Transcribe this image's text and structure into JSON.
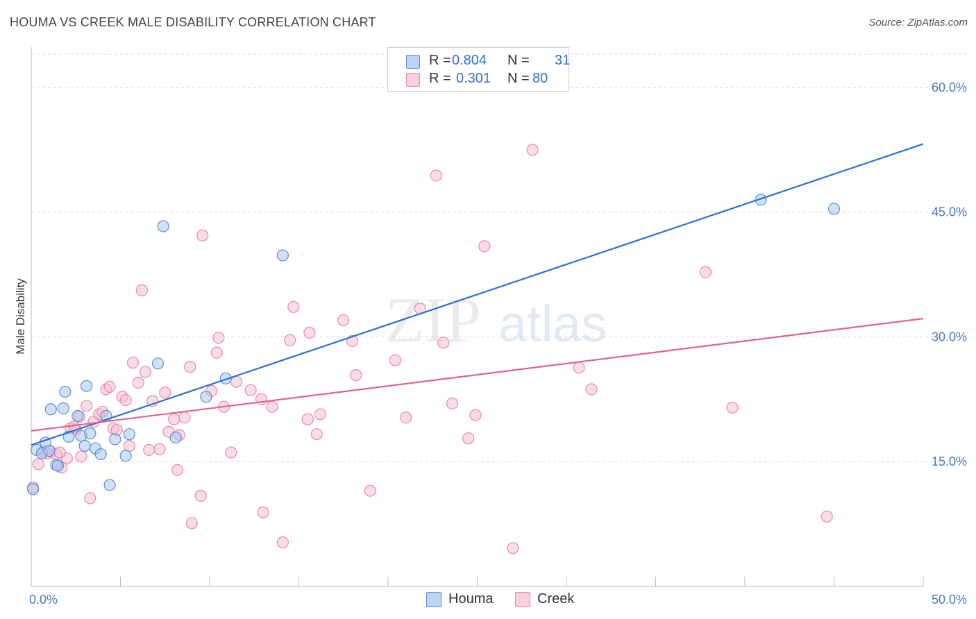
{
  "header": {
    "title": "HOUMA VS CREEK MALE DISABILITY CORRELATION CHART",
    "source": "Source: ZipAtlas.com"
  },
  "watermark": {
    "zip": "ZIP",
    "atlas": "atlas"
  },
  "legend": {
    "houma": {
      "r_label": "R =",
      "r_value": "0.804",
      "n_label": "N =",
      "n_value": "31"
    },
    "creek": {
      "r_label": "R =",
      "r_value": "0.301",
      "n_label": "N =",
      "n_value": "80"
    }
  },
  "bottom_legend": {
    "houma": "Houma",
    "creek": "Creek"
  },
  "colors": {
    "houma_fill": "#a9c6f0",
    "houma_stroke": "#5b8fd9",
    "houma_line": "#2a6fd4",
    "creek_fill": "#f5bfd0",
    "creek_stroke": "#e88aa8",
    "creek_line": "#e0638f",
    "tick_text": "#4a78c4",
    "grid": "#d8d8d8"
  },
  "chart_data": {
    "type": "scatter",
    "title": "HOUMA VS CREEK MALE DISABILITY CORRELATION CHART",
    "xlabel": "",
    "ylabel": "Male Disability",
    "xlim": [
      0,
      50
    ],
    "ylim": [
      0,
      60
    ],
    "x_tick_labels": [
      "0.0%",
      "50.0%"
    ],
    "y_ticks": [
      15,
      30,
      45,
      60
    ],
    "y_tick_labels": [
      "15.0%",
      "30.0%",
      "45.0%",
      "60.0%"
    ],
    "grid": true,
    "legend_position": "top-center",
    "series": [
      {
        "name": "Houma",
        "r": 0.804,
        "n": 31,
        "trend": {
          "x": [
            0,
            50
          ],
          "y": [
            17.0,
            53.2
          ]
        },
        "points": [
          {
            "x": 0.1,
            "y": 11.7
          },
          {
            "x": 0.3,
            "y": 16.4
          },
          {
            "x": 0.6,
            "y": 16.0
          },
          {
            "x": 0.8,
            "y": 17.3
          },
          {
            "x": 1.0,
            "y": 16.3
          },
          {
            "x": 1.1,
            "y": 21.3
          },
          {
            "x": 1.4,
            "y": 14.6
          },
          {
            "x": 1.5,
            "y": 14.5
          },
          {
            "x": 1.8,
            "y": 21.4
          },
          {
            "x": 1.9,
            "y": 23.4
          },
          {
            "x": 2.1,
            "y": 18.0
          },
          {
            "x": 2.6,
            "y": 20.5
          },
          {
            "x": 2.8,
            "y": 18.1
          },
          {
            "x": 3.0,
            "y": 16.9
          },
          {
            "x": 3.1,
            "y": 24.1
          },
          {
            "x": 3.3,
            "y": 18.4
          },
          {
            "x": 3.6,
            "y": 16.6
          },
          {
            "x": 3.9,
            "y": 15.9
          },
          {
            "x": 4.2,
            "y": 20.5
          },
          {
            "x": 4.4,
            "y": 12.2
          },
          {
            "x": 4.7,
            "y": 17.7
          },
          {
            "x": 5.3,
            "y": 15.7
          },
          {
            "x": 5.5,
            "y": 18.3
          },
          {
            "x": 7.1,
            "y": 26.8
          },
          {
            "x": 7.4,
            "y": 43.3
          },
          {
            "x": 8.1,
            "y": 17.9
          },
          {
            "x": 9.8,
            "y": 22.8
          },
          {
            "x": 10.9,
            "y": 25.0
          },
          {
            "x": 14.1,
            "y": 39.8
          },
          {
            "x": 40.9,
            "y": 46.5
          },
          {
            "x": 45.0,
            "y": 45.4
          }
        ]
      },
      {
        "name": "Creek",
        "r": 0.301,
        "n": 80,
        "trend": {
          "x": [
            0,
            50
          ],
          "y": [
            18.7,
            32.2
          ]
        },
        "points": [
          {
            "x": 0.1,
            "y": 11.9
          },
          {
            "x": 0.4,
            "y": 14.7
          },
          {
            "x": 0.7,
            "y": 16.2
          },
          {
            "x": 0.9,
            "y": 16.0
          },
          {
            "x": 1.1,
            "y": 16.2
          },
          {
            "x": 1.4,
            "y": 15.9
          },
          {
            "x": 1.7,
            "y": 14.3
          },
          {
            "x": 2.0,
            "y": 15.4
          },
          {
            "x": 2.2,
            "y": 19.0
          },
          {
            "x": 2.5,
            "y": 18.9
          },
          {
            "x": 2.7,
            "y": 20.4
          },
          {
            "x": 2.8,
            "y": 15.6
          },
          {
            "x": 3.1,
            "y": 21.7
          },
          {
            "x": 3.3,
            "y": 10.6
          },
          {
            "x": 3.5,
            "y": 19.8
          },
          {
            "x": 3.8,
            "y": 20.7
          },
          {
            "x": 4.0,
            "y": 21.0
          },
          {
            "x": 4.2,
            "y": 23.7
          },
          {
            "x": 4.4,
            "y": 24.0
          },
          {
            "x": 4.6,
            "y": 19.0
          },
          {
            "x": 4.8,
            "y": 18.8
          },
          {
            "x": 5.1,
            "y": 22.8
          },
          {
            "x": 5.3,
            "y": 22.4
          },
          {
            "x": 5.5,
            "y": 16.9
          },
          {
            "x": 5.7,
            "y": 26.9
          },
          {
            "x": 6.0,
            "y": 24.5
          },
          {
            "x": 6.2,
            "y": 35.6
          },
          {
            "x": 6.4,
            "y": 25.8
          },
          {
            "x": 6.6,
            "y": 16.4
          },
          {
            "x": 6.8,
            "y": 22.3
          },
          {
            "x": 7.2,
            "y": 16.5
          },
          {
            "x": 7.5,
            "y": 23.3
          },
          {
            "x": 7.7,
            "y": 18.6
          },
          {
            "x": 8.0,
            "y": 20.1
          },
          {
            "x": 8.2,
            "y": 14.0
          },
          {
            "x": 8.3,
            "y": 18.2
          },
          {
            "x": 8.6,
            "y": 20.3
          },
          {
            "x": 8.9,
            "y": 26.4
          },
          {
            "x": 9.0,
            "y": 7.6
          },
          {
            "x": 9.5,
            "y": 10.9
          },
          {
            "x": 9.6,
            "y": 42.2
          },
          {
            "x": 10.1,
            "y": 23.5
          },
          {
            "x": 10.4,
            "y": 28.1
          },
          {
            "x": 10.5,
            "y": 29.9
          },
          {
            "x": 10.8,
            "y": 21.6
          },
          {
            "x": 11.2,
            "y": 16.1
          },
          {
            "x": 11.5,
            "y": 24.6
          },
          {
            "x": 12.3,
            "y": 23.6
          },
          {
            "x": 12.9,
            "y": 22.5
          },
          {
            "x": 13.0,
            "y": 8.9
          },
          {
            "x": 13.5,
            "y": 21.6
          },
          {
            "x": 14.1,
            "y": 5.3
          },
          {
            "x": 14.5,
            "y": 29.6
          },
          {
            "x": 14.7,
            "y": 33.6
          },
          {
            "x": 15.5,
            "y": 20.1
          },
          {
            "x": 15.6,
            "y": 30.5
          },
          {
            "x": 16.0,
            "y": 18.3
          },
          {
            "x": 16.2,
            "y": 20.7
          },
          {
            "x": 17.5,
            "y": 32.0
          },
          {
            "x": 18.0,
            "y": 29.5
          },
          {
            "x": 18.2,
            "y": 25.4
          },
          {
            "x": 19.0,
            "y": 11.5
          },
          {
            "x": 20.4,
            "y": 27.2
          },
          {
            "x": 21.0,
            "y": 20.3
          },
          {
            "x": 21.8,
            "y": 33.4
          },
          {
            "x": 22.7,
            "y": 49.4
          },
          {
            "x": 23.1,
            "y": 29.3
          },
          {
            "x": 23.6,
            "y": 22.0
          },
          {
            "x": 24.5,
            "y": 17.8
          },
          {
            "x": 24.9,
            "y": 20.6
          },
          {
            "x": 25.4,
            "y": 40.9
          },
          {
            "x": 27.0,
            "y": 4.6
          },
          {
            "x": 28.1,
            "y": 52.5
          },
          {
            "x": 30.7,
            "y": 26.3
          },
          {
            "x": 31.4,
            "y": 23.7
          },
          {
            "x": 37.8,
            "y": 37.8
          },
          {
            "x": 39.3,
            "y": 21.5
          },
          {
            "x": 44.6,
            "y": 8.4
          },
          {
            "x": 1.6,
            "y": 16.1
          },
          {
            "x": 2.4,
            "y": 19.2
          }
        ]
      }
    ]
  }
}
